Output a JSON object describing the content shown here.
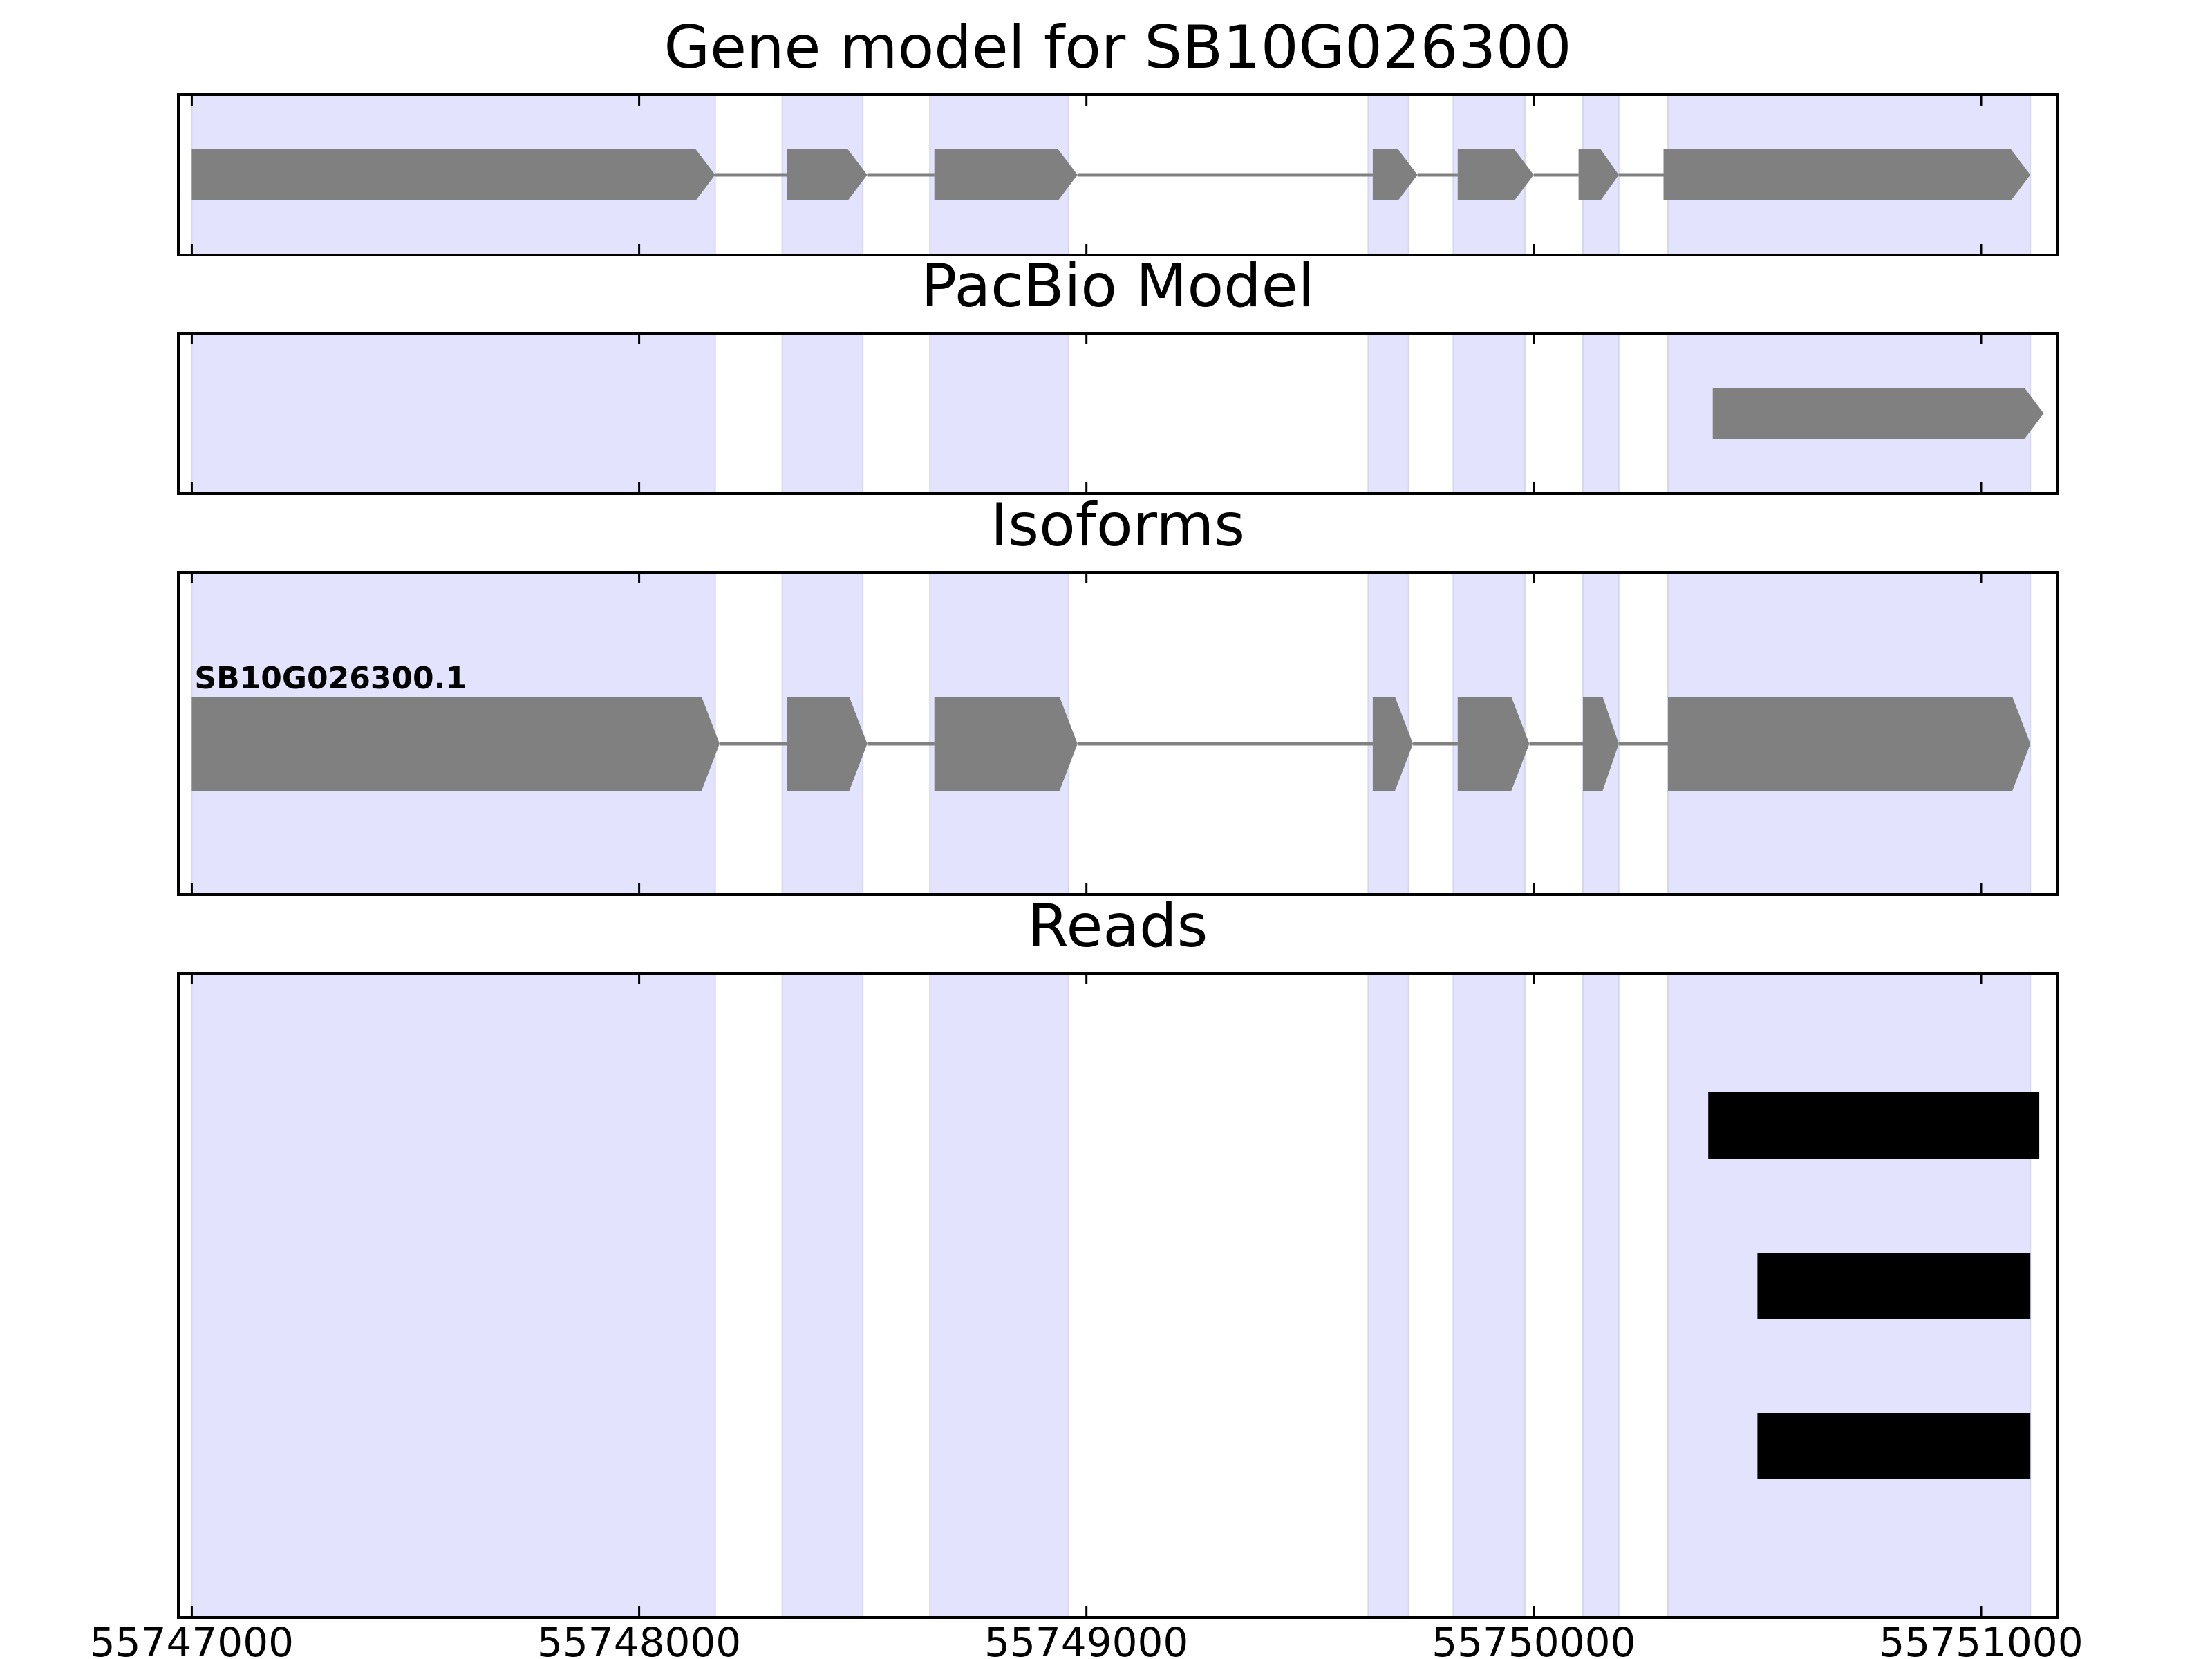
{
  "chart_data": {
    "type": "gene-track",
    "x_axis": {
      "ticks": [
        55747000,
        55748000,
        55749000,
        55750000,
        55751000
      ],
      "tick_labels": [
        "55747000",
        "55748000",
        "55749000",
        "55750000",
        "55751000"
      ],
      "xlim": [
        55746970,
        55751170
      ]
    },
    "shaded_regions": [
      [
        55747000,
        55748170
      ],
      [
        55748320,
        55748500
      ],
      [
        55748650,
        55748960
      ],
      [
        55749630,
        55749720
      ],
      [
        55749820,
        55749980
      ],
      [
        55750110,
        55750190
      ],
      [
        55750300,
        55751110
      ]
    ],
    "colors": {
      "shade": "#e3e3fd",
      "exon": "#808080",
      "intron": "#808080",
      "read": "#000000",
      "frame": "#000000"
    },
    "panels": [
      {
        "id": "gene-model",
        "title": "Gene model for SB10G026300",
        "tracks": [
          {
            "label": "",
            "exons": [
              [
                55747000,
                55748170
              ],
              [
                55748330,
                55748510
              ],
              [
                55748660,
                55748980
              ],
              [
                55749640,
                55749740
              ],
              [
                55749830,
                55750000
              ],
              [
                55750100,
                55750190
              ],
              [
                55750290,
                55751110
              ]
            ]
          }
        ]
      },
      {
        "id": "pacbio-model",
        "title": "PacBio Model",
        "tracks": [
          {
            "label": "",
            "exons": [
              [
                55750400,
                55751140
              ]
            ]
          }
        ]
      },
      {
        "id": "isoforms",
        "title": "Isoforms",
        "tracks": [
          {
            "label": "SB10G026300.1",
            "exons": [
              [
                55747000,
                55748180
              ],
              [
                55748330,
                55748510
              ],
              [
                55748660,
                55748980
              ],
              [
                55749640,
                55749730
              ],
              [
                55749830,
                55749990
              ],
              [
                55750110,
                55750190
              ],
              [
                55750300,
                55751110
              ]
            ]
          }
        ]
      },
      {
        "id": "reads",
        "title": "Reads",
        "reads": [
          [
            55750390,
            55751130
          ],
          [
            55750500,
            55751110
          ],
          [
            55750500,
            55751110
          ]
        ]
      }
    ]
  }
}
